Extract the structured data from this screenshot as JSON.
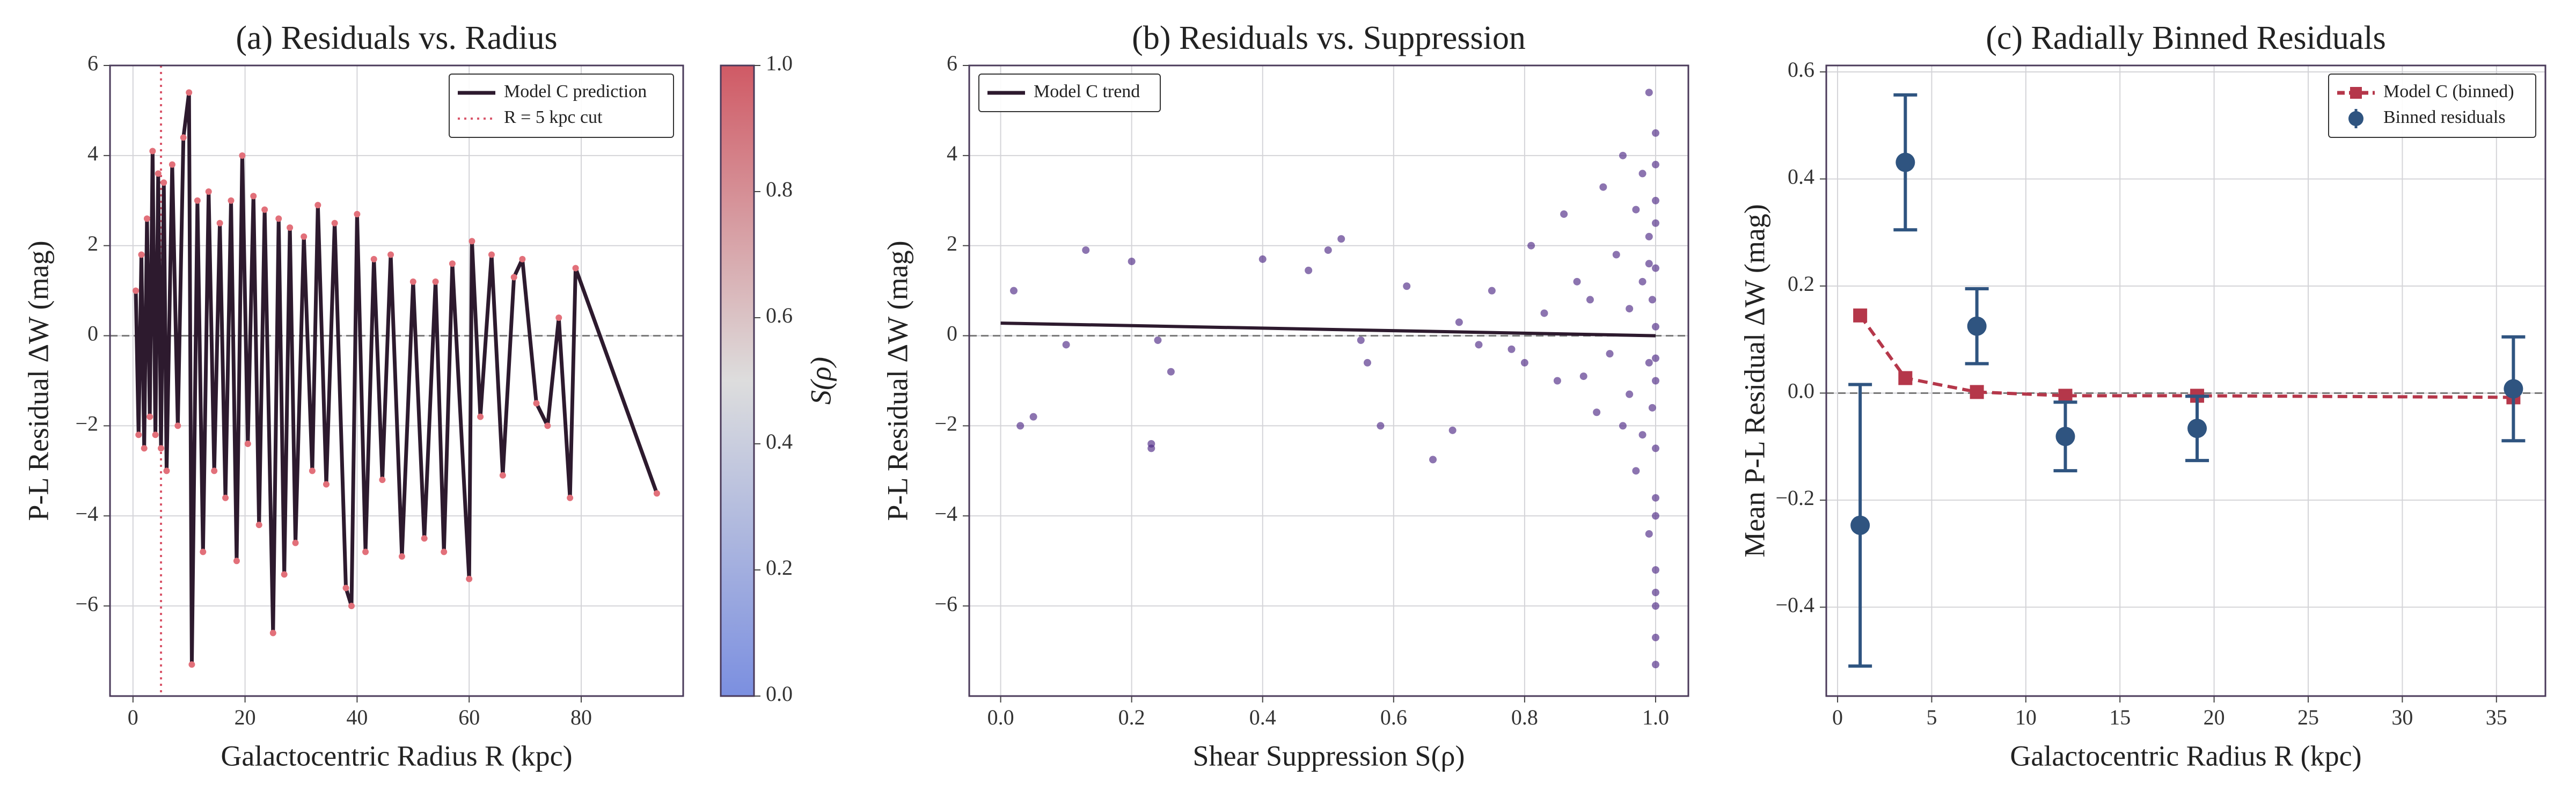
{
  "chart_data": [
    {
      "type": "line",
      "title": "(a) Residuals vs. Radius",
      "xlabel": "Galactocentric Radius R (kpc)",
      "ylabel": "P-L Residual ΔW (mag)",
      "xlim": [
        -4.1,
        98.2
      ],
      "ylim": [
        -8,
        6
      ],
      "xticks": [
        0,
        20,
        40,
        60,
        80
      ],
      "yticks": [
        {
          "value": -6,
          "label": "−6"
        },
        {
          "value": -4,
          "label": "−4"
        },
        {
          "value": -2,
          "label": "−2"
        },
        0,
        2,
        4,
        6
      ],
      "grid": true,
      "legend": "upper right",
      "hline": 0,
      "series": [
        {
          "name": "Model C prediction",
          "color": "#2d1a2e",
          "marker_color": "#e2707a",
          "x": [
            0.5,
            1,
            1.5,
            2,
            2.5,
            3,
            3.5,
            4,
            4.5,
            5,
            5.5,
            6,
            7,
            8,
            9,
            10,
            10.5,
            11.5,
            12.5,
            13.5,
            14.5,
            15.5,
            16.5,
            17.5,
            18.5,
            19.5,
            20.5,
            21.5,
            22.5,
            23.5,
            25,
            26,
            27,
            28,
            29,
            30.5,
            32,
            33,
            34.5,
            36,
            38,
            39,
            40,
            41.5,
            43,
            44.5,
            46,
            48,
            50,
            52,
            54,
            55.5,
            57,
            60,
            60.5,
            62,
            64,
            66,
            68,
            69.5,
            72,
            74,
            76,
            78,
            79,
            93.5
          ],
          "values": [
            1.0,
            -2.2,
            1.8,
            -2.5,
            2.6,
            -1.8,
            4.1,
            -2.2,
            3.6,
            -2.5,
            3.4,
            -3.0,
            3.8,
            -2.0,
            4.4,
            5.4,
            -7.3,
            3.0,
            -4.8,
            3.2,
            -3.0,
            2.5,
            -3.6,
            3.0,
            -5.0,
            4.0,
            -2.4,
            3.1,
            -4.2,
            2.8,
            -6.6,
            2.6,
            -5.3,
            2.4,
            -4.6,
            2.2,
            -3.0,
            2.9,
            -3.3,
            2.5,
            -5.6,
            -6.0,
            2.7,
            -4.8,
            1.7,
            -3.2,
            1.8,
            -4.9,
            1.2,
            -4.5,
            1.2,
            -4.8,
            1.6,
            -5.4,
            2.1,
            -1.8,
            1.8,
            -3.1,
            1.3,
            1.7,
            -1.5,
            -2.0,
            0.4,
            -3.6,
            1.5,
            -3.5
          ]
        }
      ],
      "vline": {
        "name": "R = 5 kpc cut",
        "x": 5,
        "color": "#d9576b"
      },
      "colorbar": {
        "label": "S(ρ)",
        "lim": [
          0,
          1
        ],
        "ticks": [
          {
            "value": 0,
            "label": "0.0"
          },
          0.2,
          0.4,
          0.6,
          0.8,
          {
            "value": 1,
            "label": "1.0"
          }
        ],
        "colors": [
          "#7b8fe0",
          "#dddddd",
          "#d05a65"
        ]
      }
    },
    {
      "type": "scatter",
      "title": "(b) Residuals vs. Suppression",
      "xlabel": "Shear Suppression S(ρ)",
      "ylabel": "P-L Residual ΔW (mag)",
      "xlim": [
        -0.048,
        1.05
      ],
      "ylim": [
        -8,
        6
      ],
      "xticks": [
        {
          "value": 0,
          "label": "0.0"
        },
        0.2,
        0.4,
        0.6,
        0.8,
        {
          "value": 1,
          "label": "1.0"
        }
      ],
      "yticks": [
        {
          "value": -6,
          "label": "−6"
        },
        {
          "value": -4,
          "label": "−4"
        },
        {
          "value": -2,
          "label": "−2"
        },
        0,
        2,
        4,
        6
      ],
      "grid": true,
      "legend": "upper left",
      "hline": 0,
      "color": "#4f2a85",
      "x": [
        0.02,
        0.03,
        0.05,
        0.1,
        0.13,
        0.2,
        0.23,
        0.23,
        0.24,
        0.26,
        0.4,
        0.47,
        0.5,
        0.52,
        0.55,
        0.56,
        0.58,
        0.62,
        0.66,
        0.69,
        0.7,
        0.73,
        0.75,
        0.78,
        0.8,
        0.81,
        0.83,
        0.85,
        0.86,
        0.88,
        0.89,
        0.9,
        0.91,
        0.92,
        0.93,
        0.94,
        0.95,
        0.95,
        0.96,
        0.96,
        0.97,
        0.97,
        0.98,
        0.98,
        0.98,
        0.99,
        0.99,
        0.99,
        0.99,
        1.0,
        1.0,
        1.0,
        1.0,
        1.0,
        1.0,
        1.0,
        1.0,
        1.0,
        1.0,
        1.0,
        1.0,
        1.0,
        0.995,
        0.995,
        0.99,
        1.0,
        1.0,
        1.0
      ],
      "values": [
        1.0,
        -2.0,
        -1.8,
        -0.2,
        1.9,
        1.65,
        -2.4,
        -2.5,
        -0.1,
        -0.8,
        1.7,
        1.45,
        1.9,
        2.15,
        -0.1,
        -0.6,
        -2.0,
        1.1,
        -2.75,
        -2.1,
        0.3,
        -0.2,
        1.0,
        -0.3,
        -0.6,
        2.0,
        0.5,
        -1.0,
        2.7,
        1.2,
        -0.9,
        0.8,
        -1.7,
        3.3,
        -0.4,
        1.8,
        -2.0,
        4.0,
        0.6,
        -1.3,
        2.8,
        -3.0,
        1.2,
        -2.2,
        3.6,
        -0.6,
        2.2,
        -4.4,
        5.4,
        4.5,
        -5.2,
        -6.7,
        -7.3,
        -6.0,
        3.0,
        -3.6,
        1.5,
        -1.0,
        0.2,
        -2.5,
        2.5,
        -4.0,
        0.8,
        -1.6,
        1.6,
        -5.7,
        3.8,
        -0.5
      ],
      "series": [
        {
          "name": "Model C trend",
          "color": "#2d1a2e",
          "x": [
            0,
            1
          ],
          "values": [
            0.28,
            0.0
          ]
        }
      ]
    },
    {
      "type": "errorbar",
      "title": "(c) Radially Binned Residuals",
      "xlabel": "Galactocentric Radius R (kpc)",
      "ylabel": "Mean P-L Residual ΔW (mag)",
      "xlim": [
        -0.6,
        37.6
      ],
      "ylim": [
        -0.566,
        0.612
      ],
      "xticks": [
        0,
        5,
        10,
        15,
        20,
        25,
        30,
        35
      ],
      "yticks": [
        {
          "value": -0.4,
          "label": "−0.4"
        },
        {
          "value": -0.2,
          "label": "−0.2"
        },
        {
          "value": 0,
          "label": "0.0"
        },
        0.2,
        0.4,
        0.6
      ],
      "grid": true,
      "legend": "upper right",
      "hline": 0,
      "series": [
        {
          "name": "Model C (binned)",
          "color": "#b5374a",
          "linestyle": "dashed",
          "marker": "square",
          "x": [
            1.2,
            3.6,
            7.4,
            12.1,
            19.1,
            35.9
          ],
          "values": [
            0.145,
            0.028,
            0.002,
            -0.005,
            -0.005,
            -0.008
          ]
        },
        {
          "name": "Binned residuals",
          "color": "#2f5480",
          "marker": "circle",
          "x": [
            1.2,
            3.6,
            7.4,
            12.1,
            19.1,
            35.9
          ],
          "values": [
            -0.247,
            0.431,
            0.125,
            -0.081,
            -0.066,
            0.008
          ],
          "error": [
            0.263,
            0.126,
            0.07,
            0.064,
            0.06,
            0.097
          ]
        }
      ]
    }
  ]
}
